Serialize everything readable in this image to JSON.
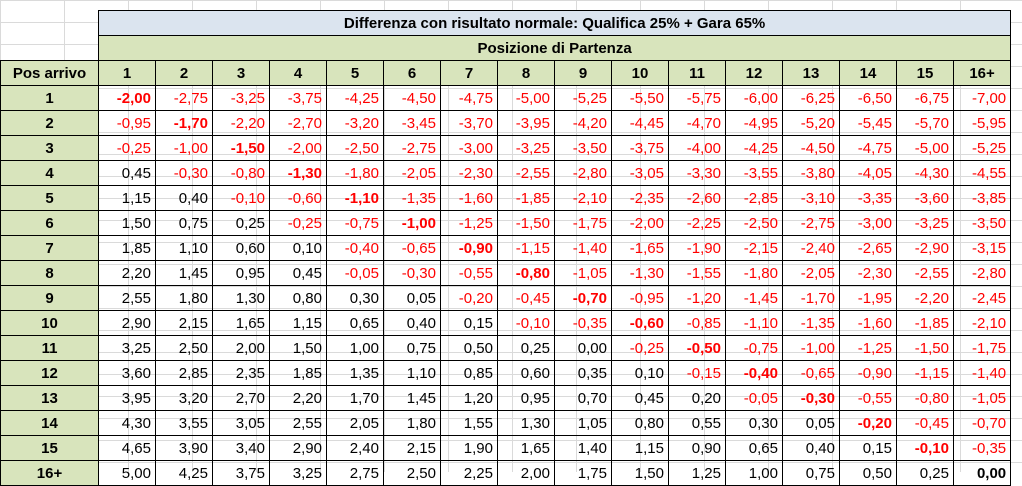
{
  "title": "Differenza con risultato normale: Qualifica 25% + Gara 65%",
  "subtitle": "Posizione di Partenza",
  "corner_label": "Pos arrivo",
  "columns": [
    "1",
    "2",
    "3",
    "4",
    "5",
    "6",
    "7",
    "8",
    "9",
    "10",
    "11",
    "12",
    "13",
    "14",
    "15",
    "16+"
  ],
  "rows": [
    {
      "label": "1",
      "values": [
        "-2,00",
        "-2,75",
        "-3,25",
        "-3,75",
        "-4,25",
        "-4,50",
        "-4,75",
        "-5,00",
        "-5,25",
        "-5,50",
        "-5,75",
        "-6,00",
        "-6,25",
        "-6,50",
        "-6,75",
        "-7,00"
      ]
    },
    {
      "label": "2",
      "values": [
        "-0,95",
        "-1,70",
        "-2,20",
        "-2,70",
        "-3,20",
        "-3,45",
        "-3,70",
        "-3,95",
        "-4,20",
        "-4,45",
        "-4,70",
        "-4,95",
        "-5,20",
        "-5,45",
        "-5,70",
        "-5,95"
      ]
    },
    {
      "label": "3",
      "values": [
        "-0,25",
        "-1,00",
        "-1,50",
        "-2,00",
        "-2,50",
        "-2,75",
        "-3,00",
        "-3,25",
        "-3,50",
        "-3,75",
        "-4,00",
        "-4,25",
        "-4,50",
        "-4,75",
        "-5,00",
        "-5,25"
      ]
    },
    {
      "label": "4",
      "values": [
        "0,45",
        "-0,30",
        "-0,80",
        "-1,30",
        "-1,80",
        "-2,05",
        "-2,30",
        "-2,55",
        "-2,80",
        "-3,05",
        "-3,30",
        "-3,55",
        "-3,80",
        "-4,05",
        "-4,30",
        "-4,55"
      ]
    },
    {
      "label": "5",
      "values": [
        "1,15",
        "0,40",
        "-0,10",
        "-0,60",
        "-1,10",
        "-1,35",
        "-1,60",
        "-1,85",
        "-2,10",
        "-2,35",
        "-2,60",
        "-2,85",
        "-3,10",
        "-3,35",
        "-3,60",
        "-3,85"
      ]
    },
    {
      "label": "6",
      "values": [
        "1,50",
        "0,75",
        "0,25",
        "-0,25",
        "-0,75",
        "-1,00",
        "-1,25",
        "-1,50",
        "-1,75",
        "-2,00",
        "-2,25",
        "-2,50",
        "-2,75",
        "-3,00",
        "-3,25",
        "-3,50"
      ]
    },
    {
      "label": "7",
      "values": [
        "1,85",
        "1,10",
        "0,60",
        "0,10",
        "-0,40",
        "-0,65",
        "-0,90",
        "-1,15",
        "-1,40",
        "-1,65",
        "-1,90",
        "-2,15",
        "-2,40",
        "-2,65",
        "-2,90",
        "-3,15"
      ]
    },
    {
      "label": "8",
      "values": [
        "2,20",
        "1,45",
        "0,95",
        "0,45",
        "-0,05",
        "-0,30",
        "-0,55",
        "-0,80",
        "-1,05",
        "-1,30",
        "-1,55",
        "-1,80",
        "-2,05",
        "-2,30",
        "-2,55",
        "-2,80"
      ]
    },
    {
      "label": "9",
      "values": [
        "2,55",
        "1,80",
        "1,30",
        "0,80",
        "0,30",
        "0,05",
        "-0,20",
        "-0,45",
        "-0,70",
        "-0,95",
        "-1,20",
        "-1,45",
        "-1,70",
        "-1,95",
        "-2,20",
        "-2,45"
      ]
    },
    {
      "label": "10",
      "values": [
        "2,90",
        "2,15",
        "1,65",
        "1,15",
        "0,65",
        "0,40",
        "0,15",
        "-0,10",
        "-0,35",
        "-0,60",
        "-0,85",
        "-1,10",
        "-1,35",
        "-1,60",
        "-1,85",
        "-2,10"
      ]
    },
    {
      "label": "11",
      "values": [
        "3,25",
        "2,50",
        "2,00",
        "1,50",
        "1,00",
        "0,75",
        "0,50",
        "0,25",
        "0,00",
        "-0,25",
        "-0,50",
        "-0,75",
        "-1,00",
        "-1,25",
        "-1,50",
        "-1,75"
      ]
    },
    {
      "label": "12",
      "values": [
        "3,60",
        "2,85",
        "2,35",
        "1,85",
        "1,35",
        "1,10",
        "0,85",
        "0,60",
        "0,35",
        "0,10",
        "-0,15",
        "-0,40",
        "-0,65",
        "-0,90",
        "-1,15",
        "-1,40"
      ]
    },
    {
      "label": "13",
      "values": [
        "3,95",
        "3,20",
        "2,70",
        "2,20",
        "1,70",
        "1,45",
        "1,20",
        "0,95",
        "0,70",
        "0,45",
        "0,20",
        "-0,05",
        "-0,30",
        "-0,55",
        "-0,80",
        "-1,05"
      ]
    },
    {
      "label": "14",
      "values": [
        "4,30",
        "3,55",
        "3,05",
        "2,55",
        "2,05",
        "1,80",
        "1,55",
        "1,30",
        "1,05",
        "0,80",
        "0,55",
        "0,30",
        "0,05",
        "-0,20",
        "-0,45",
        "-0,70"
      ]
    },
    {
      "label": "15",
      "values": [
        "4,65",
        "3,90",
        "3,40",
        "2,90",
        "2,40",
        "2,15",
        "1,90",
        "1,65",
        "1,40",
        "1,15",
        "0,90",
        "0,65",
        "0,40",
        "0,15",
        "-0,10",
        "-0,35"
      ]
    },
    {
      "label": "16+",
      "values": [
        "5,00",
        "4,25",
        "3,75",
        "3,25",
        "2,75",
        "2,50",
        "2,25",
        "2,00",
        "1,75",
        "1,50",
        "1,25",
        "1,00",
        "0,75",
        "0,50",
        "0,25",
        "0,00"
      ]
    }
  ],
  "colors": {
    "title_bg": "#dbe4ef",
    "header_bg": "#d8e4bc",
    "negative": "#ff0000",
    "positive": "#000000"
  }
}
